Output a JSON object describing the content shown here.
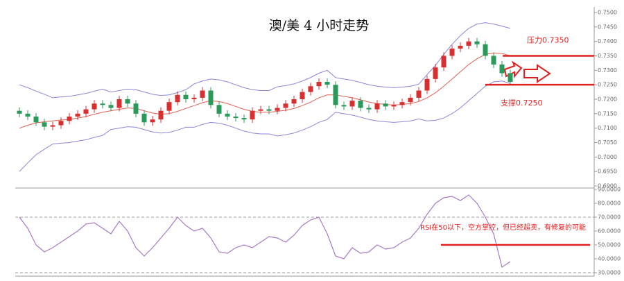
{
  "chart_data": [
    {
      "type": "candlestick",
      "title": "澳/美 4 小时走势",
      "open": [
        0.716,
        0.715,
        0.714,
        0.712,
        0.7105,
        0.711,
        0.7125,
        0.714,
        0.715,
        0.7165,
        0.7185,
        0.718,
        0.717,
        0.72,
        0.7185,
        0.715,
        0.712,
        0.713,
        0.716,
        0.719,
        0.7215,
        0.72,
        0.7205,
        0.723,
        0.718,
        0.715,
        0.714,
        0.7135,
        0.713,
        0.716,
        0.7165,
        0.716,
        0.717,
        0.7185,
        0.72,
        0.7225,
        0.7245,
        0.726,
        0.725,
        0.718,
        0.7175,
        0.7195,
        0.717,
        0.7165,
        0.7185,
        0.7175,
        0.718,
        0.719,
        0.7205,
        0.723,
        0.727,
        0.731,
        0.735,
        0.7375,
        0.7385,
        0.74,
        0.739,
        0.735,
        0.732,
        0.729
      ],
      "high": [
        0.7172,
        0.7162,
        0.7152,
        0.7132,
        0.7122,
        0.7137,
        0.7152,
        0.7162,
        0.7177,
        0.7197,
        0.7197,
        0.7192,
        0.7212,
        0.7212,
        0.7197,
        0.7162,
        0.7142,
        0.7172,
        0.7202,
        0.7227,
        0.7227,
        0.7217,
        0.7242,
        0.7242,
        0.7192,
        0.7162,
        0.7152,
        0.7147,
        0.7172,
        0.7177,
        0.7177,
        0.7182,
        0.7197,
        0.7212,
        0.7237,
        0.7257,
        0.7272,
        0.7272,
        0.7262,
        0.7192,
        0.7207,
        0.7207,
        0.7182,
        0.7197,
        0.7197,
        0.7192,
        0.7202,
        0.7217,
        0.7242,
        0.7282,
        0.7322,
        0.7362,
        0.7387,
        0.7397,
        0.7412,
        0.7412,
        0.7402,
        0.7362,
        0.7332,
        0.7302
      ],
      "low": [
        0.7138,
        0.7128,
        0.7108,
        0.7093,
        0.7093,
        0.7098,
        0.7113,
        0.7128,
        0.7138,
        0.7153,
        0.7168,
        0.7158,
        0.7158,
        0.7173,
        0.7138,
        0.7108,
        0.7108,
        0.7118,
        0.7148,
        0.7178,
        0.7188,
        0.7188,
        0.7193,
        0.7168,
        0.7138,
        0.7128,
        0.7123,
        0.7118,
        0.7118,
        0.7148,
        0.7148,
        0.7148,
        0.7158,
        0.7173,
        0.7188,
        0.7213,
        0.7233,
        0.7238,
        0.7168,
        0.7163,
        0.7163,
        0.7158,
        0.7153,
        0.7153,
        0.7163,
        0.7163,
        0.7168,
        0.7178,
        0.7193,
        0.7218,
        0.7258,
        0.7298,
        0.7338,
        0.7363,
        0.7373,
        0.7378,
        0.7338,
        0.7308,
        0.7278,
        0.7248
      ],
      "close": [
        0.715,
        0.714,
        0.712,
        0.7105,
        0.711,
        0.7125,
        0.714,
        0.715,
        0.7165,
        0.7185,
        0.718,
        0.717,
        0.72,
        0.7185,
        0.715,
        0.712,
        0.713,
        0.716,
        0.719,
        0.7215,
        0.72,
        0.7205,
        0.723,
        0.718,
        0.715,
        0.714,
        0.7135,
        0.713,
        0.716,
        0.7165,
        0.716,
        0.717,
        0.7185,
        0.72,
        0.7225,
        0.7245,
        0.726,
        0.725,
        0.718,
        0.7175,
        0.7195,
        0.717,
        0.7165,
        0.7185,
        0.7175,
        0.718,
        0.719,
        0.7205,
        0.723,
        0.727,
        0.731,
        0.735,
        0.7375,
        0.7385,
        0.74,
        0.739,
        0.735,
        0.732,
        0.729,
        0.726
      ],
      "upper_band": [
        0.725,
        0.724,
        0.7228,
        0.7217,
        0.7205,
        0.7208,
        0.721,
        0.7215,
        0.722,
        0.7228,
        0.7235,
        0.7225,
        0.723,
        0.7235,
        0.7233,
        0.7225,
        0.7217,
        0.7213,
        0.7215,
        0.7223,
        0.7233,
        0.7253,
        0.7263,
        0.727,
        0.7267,
        0.726,
        0.725,
        0.724,
        0.7233,
        0.723,
        0.723,
        0.7243,
        0.7247,
        0.7253,
        0.7263,
        0.7275,
        0.729,
        0.73,
        0.7275,
        0.727,
        0.7265,
        0.7258,
        0.725,
        0.7245,
        0.7242,
        0.724,
        0.7242,
        0.7245,
        0.7252,
        0.7285,
        0.7317,
        0.7355,
        0.739,
        0.742,
        0.7445,
        0.746,
        0.7465,
        0.746,
        0.7453,
        0.7445
      ],
      "middle_band": [
        0.71,
        0.711,
        0.7118,
        0.7122,
        0.7125,
        0.7128,
        0.713,
        0.7135,
        0.714,
        0.7148,
        0.7155,
        0.716,
        0.7165,
        0.717,
        0.7168,
        0.716,
        0.7152,
        0.7148,
        0.715,
        0.7158,
        0.7168,
        0.7178,
        0.7188,
        0.7195,
        0.7192,
        0.7185,
        0.7175,
        0.7165,
        0.7158,
        0.7155,
        0.7155,
        0.7158,
        0.7162,
        0.7168,
        0.7178,
        0.719,
        0.7205,
        0.7215,
        0.7215,
        0.721,
        0.7205,
        0.7198,
        0.719,
        0.7185,
        0.7182,
        0.718,
        0.7182,
        0.7185,
        0.7192,
        0.7205,
        0.7222,
        0.7245,
        0.727,
        0.7295,
        0.732,
        0.734,
        0.7355,
        0.736,
        0.7358,
        0.735
      ],
      "lower_band": [
        0.695,
        0.698,
        0.7008,
        0.7027,
        0.7045,
        0.7048,
        0.705,
        0.7055,
        0.706,
        0.7068,
        0.7075,
        0.7095,
        0.71,
        0.7105,
        0.7103,
        0.7095,
        0.7087,
        0.7083,
        0.7085,
        0.7093,
        0.7103,
        0.7103,
        0.7113,
        0.712,
        0.7117,
        0.711,
        0.71,
        0.709,
        0.7083,
        0.708,
        0.708,
        0.7073,
        0.7077,
        0.7083,
        0.7093,
        0.7105,
        0.712,
        0.713,
        0.7155,
        0.715,
        0.7145,
        0.7138,
        0.713,
        0.7125,
        0.7122,
        0.712,
        0.7122,
        0.7125,
        0.7132,
        0.7125,
        0.7127,
        0.7135,
        0.715,
        0.717,
        0.7195,
        0.722,
        0.7245,
        0.726,
        0.7263,
        0.7255
      ],
      "up_color": "#d83030",
      "down_color": "#2a9a5a",
      "band_color": "#8a86d8",
      "mid_color": "#e06050",
      "ylim": [
        0.69,
        0.75
      ],
      "yticks": [
        {
          "value": 0.75,
          "label": "0.7500"
        },
        {
          "value": 0.745,
          "label": "0.7450"
        },
        {
          "value": 0.74,
          "label": "0.7400"
        },
        {
          "value": 0.735,
          "label": "0.7350"
        },
        {
          "value": 0.73,
          "label": "0.7300"
        },
        {
          "value": 0.725,
          "label": "0.7250"
        },
        {
          "value": 0.72,
          "label": "0.7200"
        },
        {
          "value": 0.715,
          "label": "0.7150"
        },
        {
          "value": 0.71,
          "label": "0.7100"
        },
        {
          "value": 0.705,
          "label": "0.7050"
        },
        {
          "value": 0.7,
          "label": "0.7000"
        },
        {
          "value": 0.695,
          "label": "0.6950"
        },
        {
          "value": 0.69,
          "label": "0.6900"
        }
      ],
      "annotations": [
        {
          "text": "压力0.7350",
          "value": 0.735
        },
        {
          "text": "支撑0.7250",
          "value": 0.725
        }
      ],
      "annotation_color": "#e02020"
    },
    {
      "type": "line",
      "values": [
        70,
        62,
        50,
        45,
        48,
        52,
        56,
        60,
        65,
        66,
        62,
        58,
        67,
        60,
        48,
        42,
        48,
        55,
        62,
        70,
        64,
        60,
        62,
        55,
        45,
        44,
        48,
        50,
        48,
        52,
        56,
        55,
        52,
        57,
        64,
        68,
        70,
        58,
        42,
        40,
        48,
        44,
        45,
        50,
        47,
        48,
        52,
        55,
        62,
        72,
        80,
        84,
        85,
        82,
        86,
        80,
        70,
        58,
        34,
        38
      ],
      "color": "#a67ac8",
      "ylim": [
        30,
        90
      ],
      "yticks": [
        {
          "value": 90,
          "label": "90.0000"
        },
        {
          "value": 80,
          "label": "80.0000"
        },
        {
          "value": 70,
          "label": "70.0000"
        },
        {
          "value": 60,
          "label": "60.0000"
        },
        {
          "value": 50,
          "label": "50.0000"
        },
        {
          "value": 40,
          "label": "40.0000"
        },
        {
          "value": 30,
          "label": "30.0000"
        }
      ],
      "reference_lines": [
        70,
        30
      ],
      "annotation": {
        "text": "RSI在50以下，空方掌控，但已经超卖，有修复的可能",
        "value": 50
      },
      "annotation_color": "#e02020"
    }
  ]
}
